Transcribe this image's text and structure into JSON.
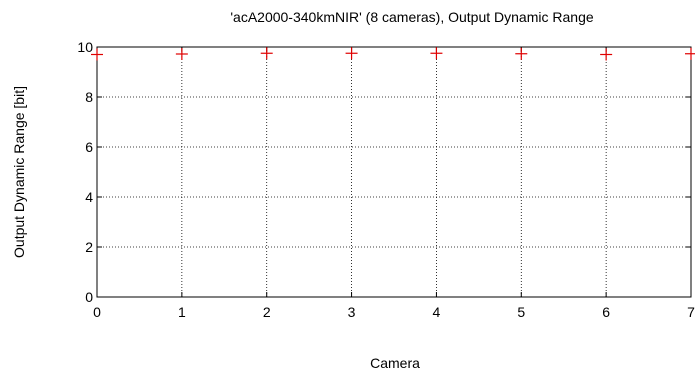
{
  "chart_data": {
    "type": "scatter",
    "title": "'acA2000-340kmNIR' (8 cameras), Output Dynamic Range",
    "xlabel": "Camera",
    "ylabel": "Output Dynamic Range [bit]",
    "xlim": [
      0,
      7
    ],
    "ylim": [
      0,
      10
    ],
    "xticks": [
      "0",
      "1",
      "2",
      "3",
      "4",
      "5",
      "6",
      "7"
    ],
    "yticks": [
      "0",
      "2",
      "4",
      "6",
      "8",
      "10"
    ],
    "grid": true,
    "marker": "+",
    "marker_color": "#e00000",
    "series": [
      {
        "x": [
          0,
          1,
          2,
          3,
          4,
          5,
          6,
          7
        ],
        "values": [
          9.7,
          9.72,
          9.75,
          9.75,
          9.75,
          9.73,
          9.7,
          9.73
        ]
      }
    ]
  }
}
